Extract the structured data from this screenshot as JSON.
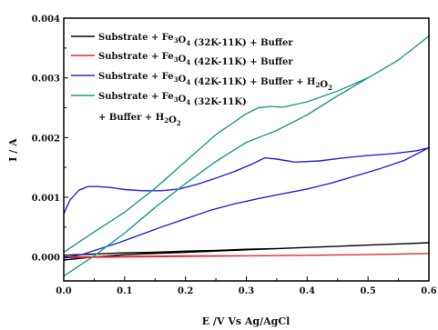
{
  "chart_data": {
    "type": "line",
    "xlabel": "E /V Vs Ag/AgCl",
    "ylabel": "I / A",
    "xlim": [
      0.0,
      0.6
    ],
    "ylim": [
      -0.0004,
      0.004
    ],
    "xticks": [
      "0.0",
      "0.1",
      "0.2",
      "0.3",
      "0.4",
      "0.5",
      "0.6"
    ],
    "xtick_values": [
      0.0,
      0.1,
      0.2,
      0.3,
      0.4,
      0.5,
      0.6
    ],
    "yticks": [
      "0.000",
      "0.001",
      "0.002",
      "0.003",
      "0.004"
    ],
    "ytick_values": [
      0.0,
      0.001,
      0.002,
      0.003,
      0.004
    ],
    "grid": false,
    "legend": "top-left",
    "series": [
      {
        "name": "Substrate + Fe3O4 (32K-11K) + Buffer",
        "legend_parts": [
          [
            "Substrate + Fe",
            ""
          ],
          [
            "3",
            "sub"
          ],
          [
            "O",
            ""
          ],
          [
            "4",
            "sub"
          ],
          [
            " (32K-11K) + Buffer",
            ""
          ]
        ],
        "color": "#000000",
        "x": [
          0.0,
          0.05,
          0.1,
          0.15,
          0.2,
          0.25,
          0.3,
          0.35,
          0.4,
          0.45,
          0.5,
          0.55,
          0.6,
          0.55,
          0.5,
          0.45,
          0.4,
          0.35,
          0.3,
          0.25,
          0.2,
          0.15,
          0.1,
          0.05,
          0.0
        ],
        "y": [
          3e-05,
          5e-05,
          7e-05,
          8e-05,
          0.0001,
          0.00011,
          0.00013,
          0.00014,
          0.00016,
          0.00018,
          0.0002,
          0.00022,
          0.00024,
          0.00022,
          0.0002,
          0.00018,
          0.00016,
          0.00014,
          0.00012,
          0.0001,
          8e-05,
          6e-05,
          4e-05,
          0.0,
          -5e-05
        ]
      },
      {
        "name": "Substrate + Fe3O4 (42K-11K) + Buffer",
        "legend_parts": [
          [
            "Substrate + Fe",
            ""
          ],
          [
            "3",
            "sub"
          ],
          [
            "O",
            ""
          ],
          [
            "4",
            "sub"
          ],
          [
            " (42K-11K) + Buffer",
            ""
          ]
        ],
        "color": "#e8262c",
        "x": [
          0.0,
          0.1,
          0.2,
          0.3,
          0.4,
          0.5,
          0.6,
          0.5,
          0.4,
          0.3,
          0.2,
          0.1,
          0.0
        ],
        "y": [
          0.0,
          1e-05,
          2e-05,
          2e-05,
          3e-05,
          4e-05,
          6e-05,
          4e-05,
          3e-05,
          2e-05,
          1e-05,
          0.0,
          -1e-05
        ]
      },
      {
        "name": "Substrate + Fe3O4 (42K-11K) + Buffer + H2O2",
        "legend_parts": [
          [
            "Substrate + Fe",
            ""
          ],
          [
            "3",
            "sub"
          ],
          [
            "O",
            ""
          ],
          [
            "4",
            "sub"
          ],
          [
            " (42K-11K) + Buffer + H",
            ""
          ],
          [
            "2",
            "sub"
          ],
          [
            "O",
            ""
          ],
          [
            "2",
            "sub"
          ]
        ],
        "color": "#2424e0",
        "x": [
          0.0,
          0.01,
          0.025,
          0.04,
          0.055,
          0.08,
          0.1,
          0.13,
          0.16,
          0.19,
          0.22,
          0.25,
          0.28,
          0.31,
          0.33,
          0.35,
          0.38,
          0.42,
          0.46,
          0.5,
          0.54,
          0.58,
          0.6,
          0.56,
          0.52,
          0.48,
          0.44,
          0.4,
          0.36,
          0.32,
          0.28,
          0.24,
          0.2,
          0.16,
          0.12,
          0.09,
          0.06,
          0.03,
          0.0
        ],
        "y": [
          0.00072,
          0.00095,
          0.00112,
          0.00118,
          0.00118,
          0.00116,
          0.00113,
          0.00111,
          0.00111,
          0.00114,
          0.00122,
          0.00132,
          0.00143,
          0.00156,
          0.00166,
          0.00164,
          0.00159,
          0.00161,
          0.00166,
          0.0017,
          0.00173,
          0.00178,
          0.00183,
          0.00162,
          0.00148,
          0.00136,
          0.00124,
          0.00114,
          0.00106,
          0.00098,
          0.00089,
          0.00078,
          0.00064,
          0.0005,
          0.00035,
          0.00024,
          0.00014,
          4e-05,
          -2e-05
        ]
      },
      {
        "name": "Substrate + Fe3O4 (32K-11K) + Buffer + H2O2",
        "legend_parts": [
          [
            "Substrate + Fe",
            ""
          ],
          [
            "3",
            "sub"
          ],
          [
            "O",
            ""
          ],
          [
            "4",
            "sub"
          ],
          [
            " (32K-11K)",
            ""
          ]
        ],
        "legend_parts_line2": [
          [
            "+ Buffer + H",
            ""
          ],
          [
            "2",
            "sub"
          ],
          [
            "O",
            ""
          ],
          [
            "2",
            "sub"
          ]
        ],
        "color": "#1a9a8c",
        "x": [
          0.0,
          0.05,
          0.1,
          0.15,
          0.2,
          0.25,
          0.3,
          0.32,
          0.34,
          0.36,
          0.4,
          0.45,
          0.5,
          0.55,
          0.6,
          0.55,
          0.5,
          0.45,
          0.4,
          0.35,
          0.3,
          0.25,
          0.2,
          0.15,
          0.1,
          0.05,
          0.0
        ],
        "y": [
          8e-05,
          0.00042,
          0.00075,
          0.00115,
          0.0016,
          0.00205,
          0.0024,
          0.0025,
          0.00252,
          0.00251,
          0.0026,
          0.00278,
          0.003,
          0.0033,
          0.0037,
          0.0033,
          0.003,
          0.0027,
          0.00238,
          0.00212,
          0.00192,
          0.0016,
          0.00123,
          0.00083,
          0.0004,
          2e-05,
          -0.00032
        ]
      }
    ]
  }
}
